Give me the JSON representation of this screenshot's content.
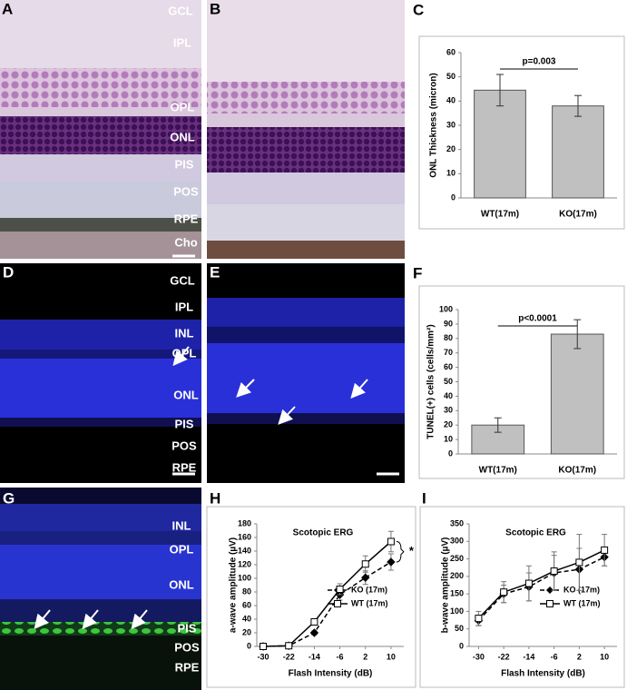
{
  "images": [
    {
      "panel": "A",
      "labels": [
        "GCL",
        "IPL",
        "OPL",
        "ONL",
        "PIS",
        "POS",
        "RPE",
        "Cho"
      ]
    },
    {
      "panel": "B"
    },
    {
      "panel": "D",
      "labels": [
        "GCL",
        "IPL",
        "INL",
        "OPL",
        "ONL",
        "PIS",
        "POS",
        "RPE"
      ]
    },
    {
      "panel": "E"
    },
    {
      "panel": "G",
      "labels": [
        "INL",
        "OPL",
        "ONL",
        "PIS",
        "POS",
        "RPE"
      ]
    }
  ],
  "chart_data": [
    {
      "type": "bar",
      "panel": "C",
      "ylabel": "ONL Thickness (micron)",
      "categories": [
        "WT(17m)",
        "KO(17m)"
      ],
      "values": [
        44.5,
        38
      ],
      "errors": [
        6.5,
        4.3
      ],
      "color": "#c0c0c0",
      "annotation": "p=0.003",
      "ylim": [
        0,
        60
      ],
      "yticks": [
        0,
        10,
        20,
        30,
        40,
        50,
        60
      ]
    },
    {
      "type": "bar",
      "panel": "F",
      "ylabel": "TUNEL(+) cells (cells/mm²)",
      "categories": [
        "WT(17m)",
        "KO(17m)"
      ],
      "values": [
        20,
        83
      ],
      "errors": [
        5,
        10
      ],
      "color": "#c0c0c0",
      "annotation": "p<0.0001",
      "ylim": [
        0,
        100
      ],
      "yticks": [
        0,
        10,
        20,
        30,
        40,
        50,
        60,
        70,
        80,
        90,
        100
      ]
    },
    {
      "type": "line",
      "panel": "H",
      "title": "Scotopic ERG",
      "xlabel": "Flash Intensity (dB)",
      "ylabel": "a-wave amplitude (µV)",
      "x": [
        -30,
        -22,
        -14,
        -6,
        2,
        10
      ],
      "xlim": [
        -32,
        14
      ],
      "xticks": [
        -30,
        -22,
        -14,
        -6,
        2,
        10
      ],
      "ylim": [
        0,
        180
      ],
      "yticks": [
        0,
        20,
        40,
        60,
        80,
        100,
        120,
        140,
        160,
        180
      ],
      "annotation": "*",
      "series": [
        {
          "name": "KO (17m)",
          "color": "#000000",
          "dashed": true,
          "marker": "diamond",
          "values": [
            0,
            1,
            20,
            76,
            101,
            124
          ],
          "errors": [
            0,
            0,
            3,
            8,
            10,
            12
          ]
        },
        {
          "name": "WT (17m)",
          "color": "#000000",
          "dashed": false,
          "marker": "square",
          "values": [
            0,
            1,
            36,
            84,
            121,
            154
          ],
          "errors": [
            0,
            0,
            3,
            8,
            12,
            15
          ]
        }
      ]
    },
    {
      "type": "line",
      "panel": "I",
      "title": "Scotopic ERG",
      "xlabel": "Flash Intensity (dB)",
      "ylabel": "b-wave amplitude (µV)",
      "x": [
        -30,
        -22,
        -14,
        -6,
        2,
        10
      ],
      "xlim": [
        -33,
        14
      ],
      "xticks": [
        -30,
        -22,
        -14,
        -6,
        2,
        10
      ],
      "ylim": [
        0,
        350
      ],
      "yticks": [
        0,
        50,
        100,
        150,
        200,
        250,
        300,
        350
      ],
      "series": [
        {
          "name": "KO (17m)",
          "color": "#000000",
          "dashed": true,
          "marker": "diamond",
          "values": [
            74,
            150,
            170,
            210,
            220,
            255
          ],
          "errors": [
            15,
            25,
            40,
            50,
            60,
            25
          ]
        },
        {
          "name": "WT (17m)",
          "color": "#000000",
          "dashed": false,
          "marker": "square",
          "values": [
            80,
            155,
            180,
            215,
            240,
            275
          ],
          "errors": [
            20,
            30,
            50,
            55,
            80,
            45
          ]
        }
      ]
    }
  ]
}
